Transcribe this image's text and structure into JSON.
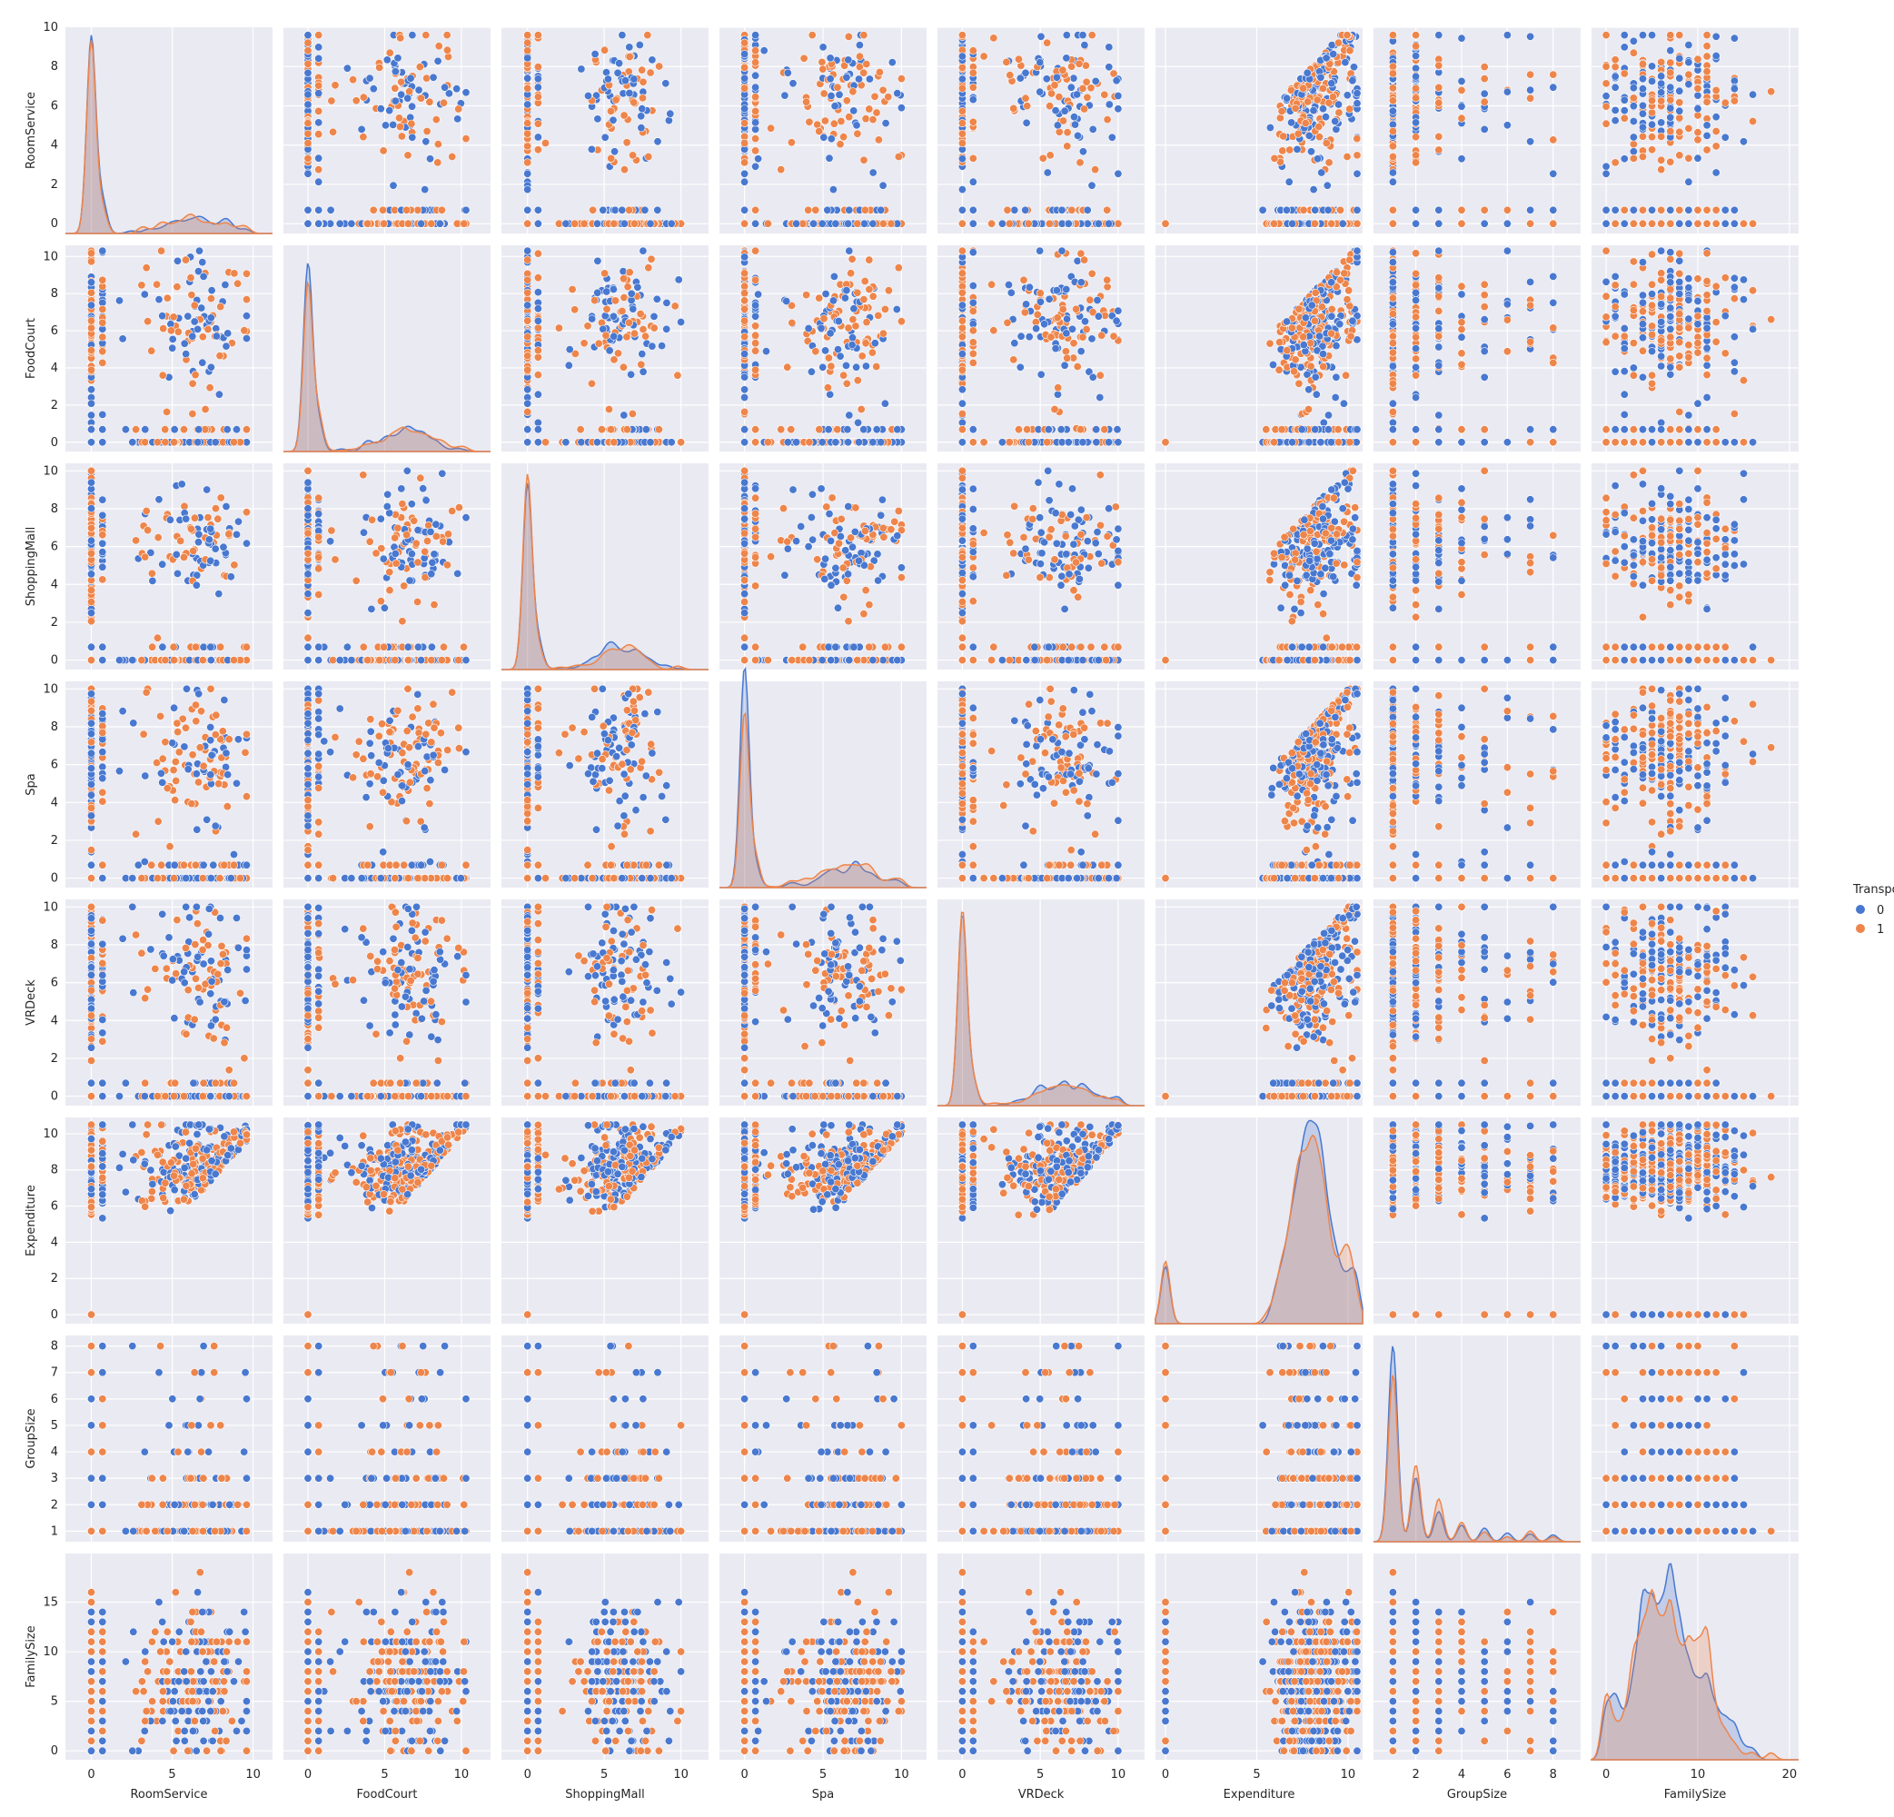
{
  "chart_data": {
    "type": "scatter",
    "subtype": "pairplot",
    "variables": [
      "RoomService",
      "FoodCourt",
      "ShoppingMall",
      "Spa",
      "VRDeck",
      "Expenditure",
      "GroupSize",
      "FamilySize"
    ],
    "diagonal": "kde",
    "hue": "Transported",
    "legend": {
      "title": "Transported",
      "placement": "right",
      "entries": [
        {
          "label": "0",
          "color": "#4878d0"
        },
        {
          "label": "1",
          "color": "#ee854a"
        }
      ]
    },
    "axis_ranges": {
      "RoomService": [
        -1.6,
        11.2
      ],
      "FoodCourt": [
        -1.6,
        11.9
      ],
      "ShoppingMall": [
        -1.7,
        11.8
      ],
      "Spa": [
        -1.6,
        11.6
      ],
      "VRDeck": [
        -1.6,
        11.7
      ],
      "Expenditure": [
        -0.55,
        10.8
      ],
      "GroupSize": [
        0.15,
        9.2
      ],
      "FamilySize": [
        -1.6,
        21.0
      ]
    },
    "ticks": {
      "RoomService": [
        0,
        5,
        10
      ],
      "FoodCourt": [
        0,
        5,
        10
      ],
      "ShoppingMall": [
        0,
        5,
        10
      ],
      "Spa": [
        0,
        5,
        10
      ],
      "VRDeck": [
        0,
        5,
        10
      ],
      "Expenditure": [
        0,
        5,
        10
      ],
      "GroupSize": [
        0,
        2,
        4,
        6,
        8
      ],
      "FamilySize": [
        0,
        10,
        20
      ]
    },
    "row_ticks": {
      "RoomService": [
        0,
        2,
        4,
        6,
        8,
        10
      ],
      "FoodCourt": [
        0,
        2,
        4,
        6,
        8,
        10
      ],
      "ShoppingMall": [
        0,
        2,
        4,
        6,
        8,
        10
      ],
      "Spa": [
        0,
        2,
        4,
        6,
        8,
        10
      ],
      "VRDeck": [
        0,
        2,
        4,
        6,
        8,
        10
      ],
      "Expenditure": [
        0,
        2,
        4,
        6,
        8,
        10
      ],
      "GroupSize": [
        1,
        2,
        3,
        4,
        5,
        6,
        7,
        8
      ],
      "FamilySize": [
        0,
        5,
        10,
        15
      ]
    },
    "row_ranges": {
      "RoomService": [
        -0.5,
        10.0
      ],
      "FoodCourt": [
        -0.5,
        10.6
      ],
      "ShoppingMall": [
        -0.5,
        10.4
      ],
      "Spa": [
        -0.5,
        10.4
      ],
      "VRDeck": [
        -0.5,
        10.4
      ],
      "Expenditure": [
        -0.5,
        10.9
      ],
      "GroupSize": [
        0.6,
        8.4
      ],
      "FamilySize": [
        -0.9,
        19.9
      ]
    },
    "distributions": {
      "RoomService": {
        "zero_fraction": 0.65,
        "peak": 6.5,
        "spread": 1.6,
        "max": 9.6
      },
      "FoodCourt": {
        "zero_fraction": 0.63,
        "peak": 6.5,
        "spread": 1.7,
        "max": 10.3
      },
      "ShoppingMall": {
        "zero_fraction": 0.66,
        "peak": 6.0,
        "spread": 1.3,
        "max": 10.0
      },
      "Spa": {
        "zero_fraction": 0.62,
        "peak": 6.5,
        "spread": 1.6,
        "max": 10.0
      },
      "VRDeck": {
        "zero_fraction": 0.64,
        "peak": 6.5,
        "spread": 1.6,
        "max": 10.0
      },
      "Expenditure": {
        "zero_fraction": 0.42,
        "peak": 7.2,
        "spread": 0.9,
        "min_nonzero": 3.8,
        "max": 10.5
      },
      "GroupSize": {
        "levels": [
          1,
          2,
          3,
          4,
          5,
          6,
          7,
          8
        ],
        "weights": [
          0.55,
          0.19,
          0.11,
          0.05,
          0.03,
          0.02,
          0.03,
          0.02
        ]
      },
      "FamilySize": {
        "mean": 7.0,
        "spread": 3.6,
        "min": 0,
        "max": 19
      }
    },
    "grid": true,
    "points_per_panel": 1400
  }
}
